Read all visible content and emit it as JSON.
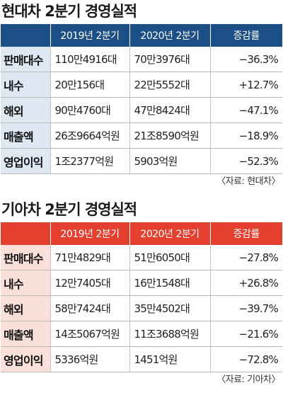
{
  "hyundai": {
    "title": "현대차 2분기 경영실적",
    "headers": [
      "2019년 2분기",
      "2020년 2분기",
      "증감률"
    ],
    "rows": [
      {
        "label": "판매대수",
        "y2019": "110만4916대",
        "y2020": "70만3976대",
        "change": "−36.3%"
      },
      {
        "label": "내수",
        "y2019": "20만156대",
        "y2020": "22만5552대",
        "change": "+12.7%"
      },
      {
        "label": "해외",
        "y2019": "90만4760대",
        "y2020": "47만8424대",
        "change": "−47.1%"
      },
      {
        "label": "매출액",
        "y2019": "26조9664억원",
        "y2020": "21조8590억원",
        "change": "−18.9%"
      },
      {
        "label": "영업이익",
        "y2019": "1조2377억원",
        "y2020": "5903억원",
        "change": "−52.3%"
      }
    ],
    "source": "〈자료: 현대차〉"
  },
  "kia": {
    "title": "기아차 2분기 경영실적",
    "headers": [
      "2019년 2분기",
      "2020년 2분기",
      "증감률"
    ],
    "rows": [
      {
        "label": "판매대수",
        "y2019": "71만4829대",
        "y2020": "51만6050대",
        "change": "−27.8%"
      },
      {
        "label": "내수",
        "y2019": "12만7405대",
        "y2020": "16만1548대",
        "change": "+26.8%"
      },
      {
        "label": "해외",
        "y2019": "58만7424대",
        "y2020": "35만4502대",
        "change": "−39.7%"
      },
      {
        "label": "매출액",
        "y2019": "14조5067억원",
        "y2020": "11조3688억원",
        "change": "−21.6%"
      },
      {
        "label": "영업이익",
        "y2019": "5336억원",
        "y2020": "1451억원",
        "change": "−72.8%"
      }
    ],
    "source": "〈자료: 기아차〉"
  },
  "colors": {
    "hyundai_header": "#1c4f86",
    "hyundai_label_bg": "#dde8f3",
    "kia_header": "#e4402f",
    "kia_label_bg": "#fbe0da"
  }
}
